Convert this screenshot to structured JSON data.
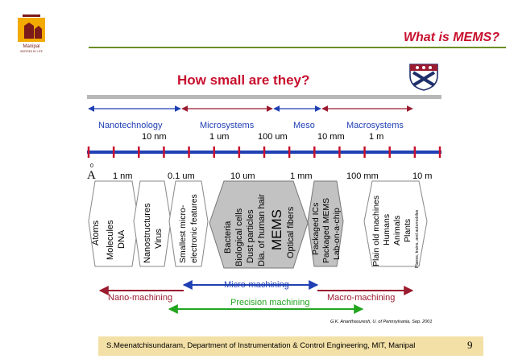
{
  "header": {
    "logo_caption": "Manipal",
    "logo_tagline": "INSPIRED BY LIFE",
    "slide_title": "What is MEMS?"
  },
  "figure": {
    "heading": "How small are they?",
    "domains": [
      {
        "label": "Nanotechnology",
        "scale": "10 nm"
      },
      {
        "label": "Microsystems",
        "scale": "1 um"
      },
      {
        "label": "Meso",
        "scale": "100 um"
      },
      {
        "label": "Macrosystems",
        "scale": "10 mm"
      },
      {
        "label": "",
        "scale": "1 m"
      }
    ],
    "axis_zero": "0",
    "axis_angstrom": "A",
    "axis_ticks": [
      "1 nm",
      "0.1 um",
      "10 um",
      "1 mm",
      "100 mm",
      "10 m"
    ],
    "groups": [
      {
        "items": [
          "Atoms",
          "Molecules",
          "DNA",
          "Nanostructures",
          "Virus"
        ]
      },
      {
        "items": [
          "Smallest micro-",
          "electronic features"
        ]
      },
      {
        "items": [
          "Bacteria",
          "Biological cells",
          "Dust particles",
          "Dia. of human hair",
          "MEMS",
          "Optical fibers"
        ]
      },
      {
        "items": [
          "Packaged ICs",
          "Packaged MEMS",
          "Lab-on-a-chip"
        ]
      },
      {
        "items": [
          "Plain old machines",
          "Humans",
          "Animals",
          "Plants",
          "Planes, trains, and automobiles"
        ]
      }
    ],
    "machining": {
      "nano": "Nano-machining",
      "micro": "Micro-machining",
      "macro": "Macro-machining",
      "precision": "Precision machining"
    },
    "citation": "G.K. Ananthasuresh, U. of Pennsylvania, Sep. 2001",
    "colors": {
      "red": "#c8102e",
      "blue": "#1f3fb4",
      "green": "#22a51f",
      "dark_red": "#9b1b30"
    }
  },
  "footer": {
    "text": "S.Meenatchisundaram, Department of Instrumentation & Control Engineering, MIT, Manipal",
    "page_number": "9"
  }
}
